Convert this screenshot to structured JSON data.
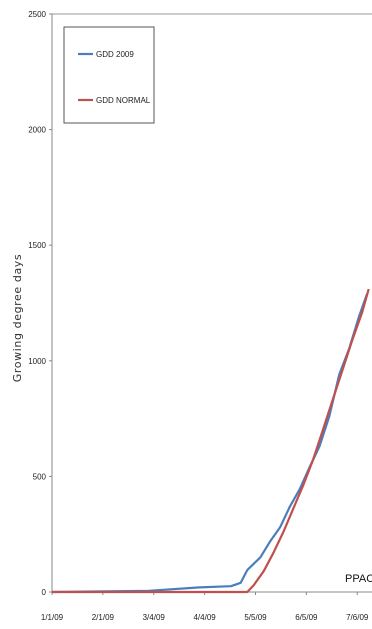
{
  "chart_data": {
    "type": "line",
    "title": "",
    "ylabel": "Growing degree days",
    "xlabel": "",
    "ylim": [
      0,
      2500
    ],
    "yticks": [
      "0",
      "500",
      "1000",
      "1500",
      "2000",
      "2500"
    ],
    "xticks": [
      "1/1/09",
      "2/1/09",
      "3/4/09",
      "4/4/09",
      "5/5/09",
      "6/5/09",
      "7/6/09"
    ],
    "legend_position": "top-left",
    "watermark": "PPAC",
    "series": [
      {
        "name": "GDD 2009",
        "color": "#4a7ebb",
        "points": [
          [
            "1/1/09",
            0
          ],
          [
            "3/1/09",
            5
          ],
          [
            "4/1/09",
            20
          ],
          [
            "4/20/09",
            25
          ],
          [
            "4/26/09",
            40
          ],
          [
            "4/30/09",
            95
          ],
          [
            "5/8/09",
            150
          ],
          [
            "5/14/09",
            220
          ],
          [
            "5/20/09",
            280
          ],
          [
            "5/26/09",
            370
          ],
          [
            "6/1/09",
            445
          ],
          [
            "6/7/09",
            540
          ],
          [
            "6/13/09",
            630
          ],
          [
            "6/19/09",
            760
          ],
          [
            "6/25/09",
            940
          ],
          [
            "7/1/09",
            1050
          ],
          [
            "7/7/09",
            1190
          ],
          [
            "7/12/09",
            1290
          ]
        ]
      },
      {
        "name": "GDD NORMAL",
        "color": "#c0504d",
        "points": [
          [
            "1/1/09",
            0
          ],
          [
            "4/30/09",
            0
          ],
          [
            "5/4/09",
            30
          ],
          [
            "5/10/09",
            90
          ],
          [
            "5/16/09",
            170
          ],
          [
            "5/22/09",
            260
          ],
          [
            "5/28/09",
            360
          ],
          [
            "6/3/09",
            460
          ],
          [
            "6/9/09",
            570
          ],
          [
            "6/15/09",
            700
          ],
          [
            "6/21/09",
            830
          ],
          [
            "6/27/09",
            960
          ],
          [
            "7/3/09",
            1090
          ],
          [
            "7/9/09",
            1210
          ],
          [
            "7/13/09",
            1310
          ]
        ]
      }
    ]
  }
}
